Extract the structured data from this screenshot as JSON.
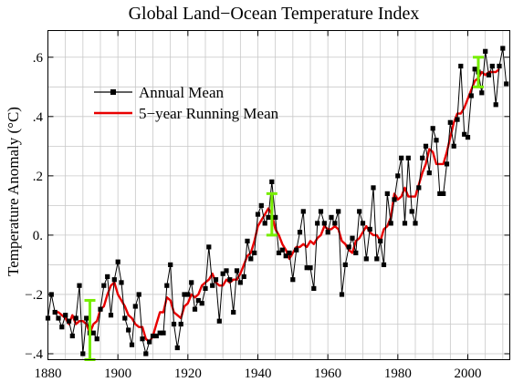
{
  "chart_data": {
    "type": "line",
    "title": "Global Land−Ocean Temperature Index",
    "xlabel": "",
    "ylabel": "Temperature Anomaly (°C)",
    "xlim": [
      1880,
      2012
    ],
    "ylim": [
      -0.42,
      0.69
    ],
    "grid": true,
    "legend_position": "top-left",
    "x_ticks": [
      1880,
      1900,
      1920,
      1940,
      1960,
      1980,
      2000
    ],
    "y_ticks": [
      {
        "value": -0.4,
        "label": "−.4"
      },
      {
        "value": -0.2,
        "label": "−.2"
      },
      {
        "value": 0,
        "label": "0."
      },
      {
        "value": 0.2,
        "label": ".2"
      },
      {
        "value": 0.4,
        "label": ".4"
      },
      {
        "value": 0.6,
        "label": ".6"
      }
    ],
    "colors": {
      "annual": "#000000",
      "running": "#e80000",
      "error_bar": "#77ee00"
    },
    "series": [
      {
        "name": "Annual Mean",
        "style": "black line with square markers",
        "x": [
          1880,
          1881,
          1882,
          1883,
          1884,
          1885,
          1886,
          1887,
          1888,
          1889,
          1890,
          1891,
          1892,
          1893,
          1894,
          1895,
          1896,
          1897,
          1898,
          1899,
          1900,
          1901,
          1902,
          1903,
          1904,
          1905,
          1906,
          1907,
          1908,
          1909,
          1910,
          1911,
          1912,
          1913,
          1914,
          1915,
          1916,
          1917,
          1918,
          1919,
          1920,
          1921,
          1922,
          1923,
          1924,
          1925,
          1926,
          1927,
          1928,
          1929,
          1930,
          1931,
          1932,
          1933,
          1934,
          1935,
          1936,
          1937,
          1938,
          1939,
          1940,
          1941,
          1942,
          1943,
          1944,
          1945,
          1946,
          1947,
          1948,
          1949,
          1950,
          1951,
          1952,
          1953,
          1954,
          1955,
          1956,
          1957,
          1958,
          1959,
          1960,
          1961,
          1962,
          1963,
          1964,
          1965,
          1966,
          1967,
          1968,
          1969,
          1970,
          1971,
          1972,
          1973,
          1974,
          1975,
          1976,
          1977,
          1978,
          1979,
          1980,
          1981,
          1982,
          1983,
          1984,
          1985,
          1986,
          1987,
          1988,
          1989,
          1990,
          1991,
          1992,
          1993,
          1994,
          1995,
          1996,
          1997,
          1998,
          1999,
          2000,
          2001,
          2002,
          2003,
          2004,
          2005,
          2006,
          2007,
          2008,
          2009,
          2010,
          2011
        ],
        "y": [
          -0.28,
          -0.2,
          -0.26,
          -0.28,
          -0.31,
          -0.27,
          -0.29,
          -0.34,
          -0.28,
          -0.17,
          -0.4,
          -0.28,
          -0.33,
          -0.33,
          -0.35,
          -0.25,
          -0.17,
          -0.14,
          -0.27,
          -0.15,
          -0.09,
          -0.16,
          -0.28,
          -0.32,
          -0.37,
          -0.24,
          -0.2,
          -0.35,
          -0.4,
          -0.36,
          -0.34,
          -0.34,
          -0.33,
          -0.33,
          -0.17,
          -0.1,
          -0.3,
          -0.38,
          -0.3,
          -0.2,
          -0.2,
          -0.16,
          -0.25,
          -0.22,
          -0.23,
          -0.18,
          -0.04,
          -0.17,
          -0.15,
          -0.29,
          -0.13,
          -0.12,
          -0.15,
          -0.26,
          -0.12,
          -0.16,
          -0.14,
          -0.02,
          -0.08,
          -0.06,
          0.07,
          0.1,
          0.04,
          0.06,
          0.18,
          0.06,
          -0.06,
          -0.05,
          -0.07,
          -0.06,
          -0.15,
          -0.05,
          0.01,
          0.08,
          -0.11,
          -0.11,
          -0.18,
          0.04,
          0.08,
          0.04,
          0.01,
          0.06,
          0.04,
          0.08,
          -0.2,
          -0.1,
          -0.04,
          -0.01,
          -0.06,
          0.08,
          0.04,
          -0.08,
          0.02,
          0.16,
          -0.08,
          -0.02,
          -0.1,
          0.14,
          0.04,
          0.12,
          0.2,
          0.26,
          0.04,
          0.26,
          0.08,
          0.04,
          0.16,
          0.26,
          0.3,
          0.21,
          0.36,
          0.32,
          0.14,
          0.14,
          0.24,
          0.38,
          0.3,
          0.39,
          0.57,
          0.34,
          0.33,
          0.47,
          0.56,
          0.55,
          0.48,
          0.62,
          0.54,
          0.57,
          0.44,
          0.57,
          0.63,
          0.51
        ]
      },
      {
        "name": "5−year Running Mean",
        "style": "red line",
        "x": [
          1882,
          1883,
          1884,
          1885,
          1886,
          1887,
          1888,
          1889,
          1890,
          1891,
          1892,
          1893,
          1894,
          1895,
          1896,
          1897,
          1898,
          1899,
          1900,
          1901,
          1902,
          1903,
          1904,
          1905,
          1906,
          1907,
          1908,
          1909,
          1910,
          1911,
          1912,
          1913,
          1914,
          1915,
          1916,
          1917,
          1918,
          1919,
          1920,
          1921,
          1922,
          1923,
          1924,
          1925,
          1926,
          1927,
          1928,
          1929,
          1930,
          1931,
          1932,
          1933,
          1934,
          1935,
          1936,
          1937,
          1938,
          1939,
          1940,
          1941,
          1942,
          1943,
          1944,
          1945,
          1946,
          1947,
          1948,
          1949,
          1950,
          1951,
          1952,
          1953,
          1954,
          1955,
          1956,
          1957,
          1958,
          1959,
          1960,
          1961,
          1962,
          1963,
          1964,
          1965,
          1966,
          1967,
          1968,
          1969,
          1970,
          1971,
          1972,
          1973,
          1974,
          1975,
          1976,
          1977,
          1978,
          1979,
          1980,
          1981,
          1982,
          1983,
          1984,
          1985,
          1986,
          1987,
          1988,
          1989,
          1990,
          1991,
          1992,
          1993,
          1994,
          1995,
          1996,
          1997,
          1998,
          1999,
          2000,
          2001,
          2002,
          2003,
          2004,
          2005,
          2006,
          2007,
          2008,
          2009
        ],
        "y": [
          -0.26,
          -0.26,
          -0.27,
          -0.28,
          -0.3,
          -0.27,
          -0.3,
          -0.29,
          -0.29,
          -0.3,
          -0.33,
          -0.3,
          -0.29,
          -0.25,
          -0.24,
          -0.2,
          -0.17,
          -0.16,
          -0.2,
          -0.22,
          -0.24,
          -0.27,
          -0.28,
          -0.3,
          -0.31,
          -0.31,
          -0.35,
          -0.36,
          -0.34,
          -0.3,
          -0.26,
          -0.26,
          -0.21,
          -0.22,
          -0.26,
          -0.27,
          -0.28,
          -0.24,
          -0.23,
          -0.2,
          -0.21,
          -0.2,
          -0.17,
          -0.16,
          -0.15,
          -0.13,
          -0.16,
          -0.17,
          -0.17,
          -0.15,
          -0.16,
          -0.15,
          -0.15,
          -0.13,
          -0.1,
          -0.07,
          -0.06,
          -0.02,
          0.03,
          0.05,
          0.07,
          0.09,
          0.07,
          0.02,
          0.0,
          -0.03,
          -0.05,
          -0.08,
          -0.06,
          -0.04,
          -0.04,
          -0.03,
          -0.04,
          -0.02,
          -0.03,
          -0.01,
          0.0,
          0.03,
          0.02,
          0.02,
          0.03,
          0.02,
          -0.02,
          -0.03,
          -0.05,
          -0.06,
          -0.02,
          -0.01,
          0.01,
          0.03,
          0.01,
          0.0,
          0.0,
          -0.02,
          0.02,
          0.03,
          0.06,
          0.14,
          0.12,
          0.13,
          0.16,
          0.13,
          0.13,
          0.13,
          0.17,
          0.21,
          0.24,
          0.29,
          0.28,
          0.24,
          0.24,
          0.24,
          0.28,
          0.33,
          0.38,
          0.41,
          0.41,
          0.43,
          0.46,
          0.49,
          0.52,
          0.53,
          0.55,
          0.54,
          0.55,
          0.55,
          0.55,
          0.56
        ]
      }
    ],
    "error_bars": [
      {
        "x": 1892,
        "low": -0.42,
        "high": -0.22
      },
      {
        "x": 1944,
        "low": 0.0,
        "high": 0.14
      },
      {
        "x": 2003,
        "low": 0.5,
        "high": 0.6
      }
    ]
  }
}
